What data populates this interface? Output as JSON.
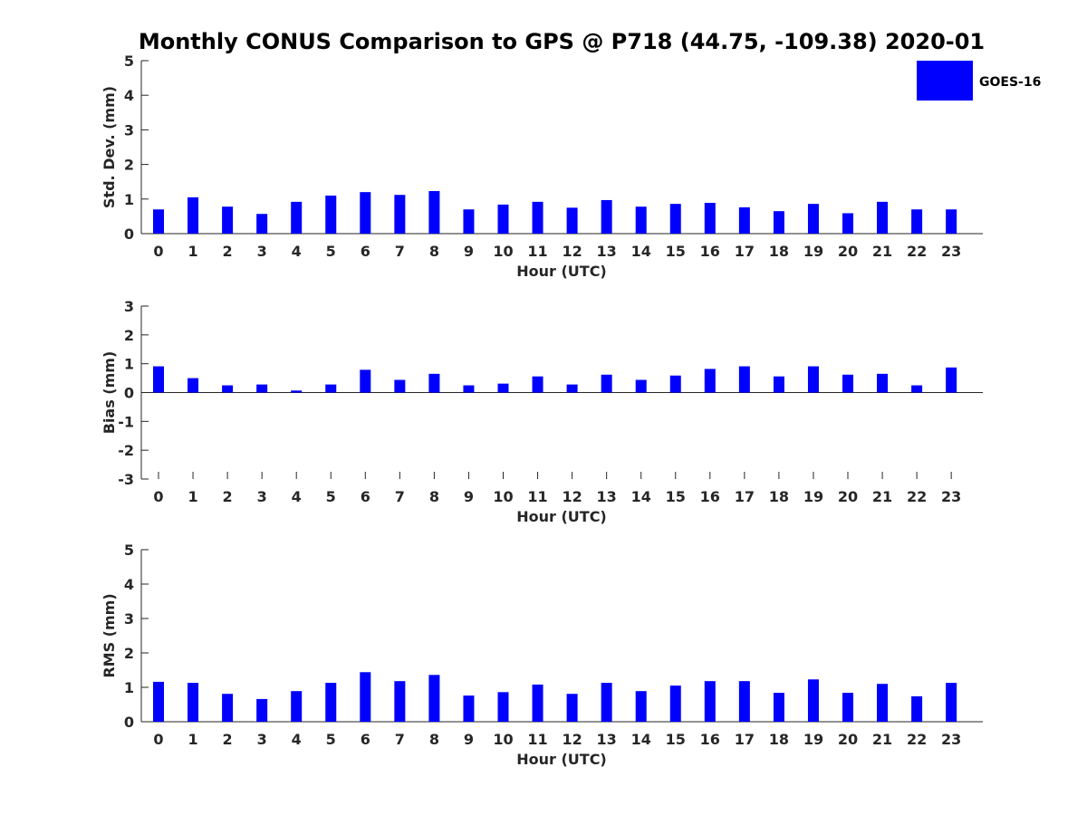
{
  "title": "Monthly CONUS Comparison to GPS @ P718 (44.75, -109.38) 2020-01",
  "colors": {
    "bar": "#0000ff",
    "axis": "#262626",
    "background": "#ffffff"
  },
  "chart_data": {
    "type": "bar",
    "title": "Monthly CONUS Comparison to GPS @ P718 (44.75, -109.38) 2020-01",
    "legend": {
      "entries": [
        "GOES-16"
      ],
      "placement": "top-right"
    },
    "categories": [
      "0",
      "1",
      "2",
      "3",
      "4",
      "5",
      "6",
      "7",
      "8",
      "9",
      "10",
      "11",
      "12",
      "13",
      "14",
      "15",
      "16",
      "17",
      "18",
      "19",
      "20",
      "21",
      "22",
      "23"
    ],
    "panels": [
      {
        "id": "std",
        "ylabel": "Std. Dev. (mm)",
        "xlabel": "Hour (UTC)",
        "ylim": [
          0,
          5
        ],
        "yticks": [
          0,
          1,
          2,
          3,
          4,
          5
        ],
        "grid": false,
        "series": [
          {
            "name": "GOES-16",
            "values": [
              0.7,
              1.05,
              0.78,
              0.57,
              0.92,
              1.1,
              1.2,
              1.12,
              1.23,
              0.7,
              0.84,
              0.92,
              0.75,
              0.97,
              0.78,
              0.86,
              0.89,
              0.76,
              0.65,
              0.86,
              0.59,
              0.92,
              0.7,
              0.7
            ]
          }
        ]
      },
      {
        "id": "bias",
        "ylabel": "Bias (mm)",
        "xlabel": "Hour (UTC)",
        "ylim": [
          -3,
          3
        ],
        "yticks": [
          -3,
          -2,
          -1,
          0,
          1,
          2,
          3
        ],
        "grid": false,
        "series": [
          {
            "name": "GOES-16",
            "values": [
              0.91,
              0.5,
              0.25,
              0.28,
              0.07,
              0.28,
              0.79,
              0.44,
              0.65,
              0.25,
              0.31,
              0.56,
              0.28,
              0.62,
              0.44,
              0.59,
              0.82,
              0.91,
              0.56,
              0.91,
              0.62,
              0.65,
              0.25,
              0.87
            ]
          }
        ]
      },
      {
        "id": "rms",
        "ylabel": "RMS (mm)",
        "xlabel": "Hour (UTC)",
        "ylim": [
          0,
          5
        ],
        "yticks": [
          0,
          1,
          2,
          3,
          4,
          5
        ],
        "grid": false,
        "series": [
          {
            "name": "GOES-16",
            "values": [
              1.16,
              1.13,
              0.81,
              0.66,
              0.89,
              1.13,
              1.44,
              1.18,
              1.36,
              0.76,
              0.86,
              1.08,
              0.81,
              1.13,
              0.89,
              1.05,
              1.18,
              1.18,
              0.84,
              1.23,
              0.84,
              1.1,
              0.74,
              1.13
            ]
          }
        ]
      }
    ]
  }
}
